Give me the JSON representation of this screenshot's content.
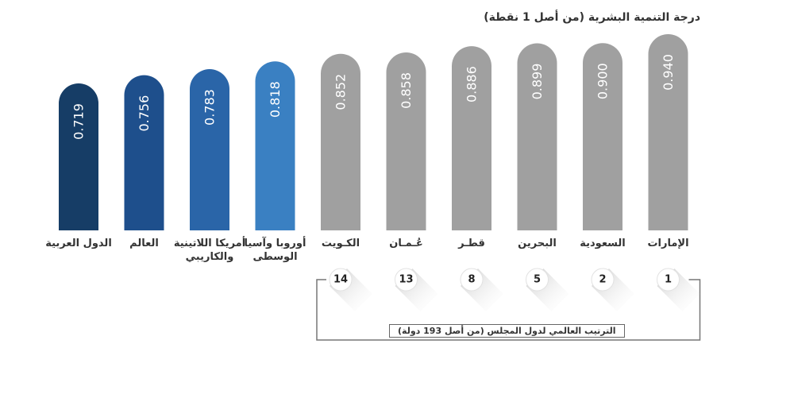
{
  "title": "درجة التنمية البشرية (من أصل 1 نقطة)",
  "rank_caption": "الترتيب العالمي لدول المجلس (من أصل 193 دولة)",
  "colors": {
    "gcc_bar": "#a0a0a0",
    "region_bars": [
      "#163d66",
      "#1e4f8c",
      "#2a65a8",
      "#3a80c2"
    ],
    "rank_circle": "#ffffff",
    "bracket": "#777777"
  },
  "chart_data": {
    "type": "bar",
    "title": "درجة التنمية البشرية (من أصل 1 نقطة)",
    "categories": [
      "الدول العربية",
      "العالم",
      "أمريكا اللاتينية والكاريبي",
      "أوروبا وآسيا الوسطى",
      "الكـويت",
      "عُـمـان",
      "قطـر",
      "البحرين",
      "السعودية",
      "الإمارات"
    ],
    "values": [
      0.719,
      0.756,
      0.783,
      0.818,
      0.852,
      0.858,
      0.886,
      0.899,
      0.9,
      0.94
    ],
    "value_labels": [
      "0.719",
      "0.756",
      "0.783",
      "0.818",
      "0.852",
      "0.858",
      "0.886",
      "0.899",
      "0.900",
      "0.940"
    ],
    "ranks": [
      "",
      "",
      "",
      "",
      "14",
      "13",
      "8",
      "5",
      "2",
      "1"
    ],
    "xlabel": "",
    "ylabel": ""
  }
}
